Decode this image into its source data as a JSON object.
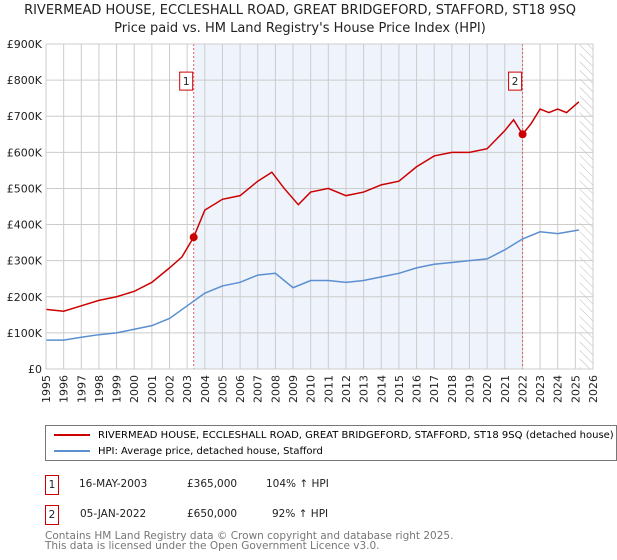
{
  "chart_data": {
    "type": "line",
    "title": "RIVERMEAD HOUSE, ECCLESHALL ROAD, GREAT BRIDGEFORD, STAFFORD, ST18 9SQ",
    "subtitle": "Price paid vs. HM Land Registry's House Price Index (HPI)",
    "xlim": [
      1995,
      2026
    ],
    "ylim": [
      0,
      900000
    ],
    "yticks": [
      {
        "v": 0,
        "label": "£0"
      },
      {
        "v": 100000,
        "label": "£100K"
      },
      {
        "v": 200000,
        "label": "£200K"
      },
      {
        "v": 300000,
        "label": "£300K"
      },
      {
        "v": 400000,
        "label": "£400K"
      },
      {
        "v": 500000,
        "label": "£500K"
      },
      {
        "v": 600000,
        "label": "£600K"
      },
      {
        "v": 700000,
        "label": "£700K"
      },
      {
        "v": 800000,
        "label": "£800K"
      },
      {
        "v": 900000,
        "label": "£900K"
      }
    ],
    "xticks": [
      "1995",
      "1996",
      "1997",
      "1998",
      "1999",
      "2000",
      "2001",
      "2002",
      "2003",
      "2004",
      "2005",
      "2006",
      "2007",
      "2008",
      "2009",
      "2010",
      "2011",
      "2012",
      "2013",
      "2014",
      "2015",
      "2016",
      "2017",
      "2018",
      "2019",
      "2020",
      "2021",
      "2022",
      "2023",
      "2024",
      "2025",
      "2026"
    ],
    "grid": true,
    "legend_placement": "below",
    "series": [
      {
        "name": "RIVERMEAD HOUSE, ECCLESHALL ROAD, GREAT BRIDGEFORD, STAFFORD, ST18 9SQ (detached house)",
        "color": "#cc0000",
        "x": [
          1995,
          1996,
          1997,
          1998,
          1999,
          2000,
          2001,
          2002,
          2002.7,
          2003.37,
          2004,
          2005,
          2006,
          2007,
          2007.8,
          2008.5,
          2009.3,
          2010,
          2011,
          2012,
          2013,
          2014,
          2015,
          2016,
          2017,
          2018,
          2019,
          2020,
          2021,
          2021.5,
          2022.01,
          2022.5,
          2023,
          2023.5,
          2024,
          2024.5,
          2025.2
        ],
        "y": [
          165000,
          160000,
          175000,
          190000,
          200000,
          215000,
          240000,
          280000,
          310000,
          365000,
          440000,
          470000,
          480000,
          520000,
          545000,
          500000,
          455000,
          490000,
          500000,
          480000,
          490000,
          510000,
          520000,
          560000,
          590000,
          600000,
          600000,
          610000,
          660000,
          690000,
          650000,
          680000,
          720000,
          710000,
          720000,
          710000,
          740000
        ]
      },
      {
        "name": "HPI: Average price, detached house, Stafford",
        "color": "#5b8fd0",
        "x": [
          1995,
          1996,
          1997,
          1998,
          1999,
          2000,
          2001,
          2002,
          2003,
          2004,
          2005,
          2006,
          2007,
          2008,
          2009,
          2010,
          2011,
          2012,
          2013,
          2014,
          2015,
          2016,
          2017,
          2018,
          2019,
          2020,
          2021,
          2022,
          2023,
          2024,
          2025.2
        ],
        "y": [
          80000,
          80000,
          88000,
          95000,
          100000,
          110000,
          120000,
          140000,
          175000,
          210000,
          230000,
          240000,
          260000,
          265000,
          225000,
          245000,
          245000,
          240000,
          245000,
          255000,
          265000,
          280000,
          290000,
          295000,
          300000,
          305000,
          330000,
          360000,
          380000,
          375000,
          385000
        ]
      }
    ],
    "annotations": [
      {
        "label": "1",
        "x": 2003.37,
        "y": 365000
      },
      {
        "label": "2",
        "x": 2022.01,
        "y": 650000
      }
    ],
    "shaded_range": [
      2003.37,
      2022.01
    ],
    "hatched_from": 2025.25
  },
  "sales": [
    {
      "num": "1",
      "date": "16-MAY-2003",
      "price": "£365,000",
      "hpi": "104% ↑ HPI"
    },
    {
      "num": "2",
      "date": "05-JAN-2022",
      "price": "£650,000",
      "hpi": "92% ↑ HPI"
    }
  ],
  "footer": {
    "line1": "Contains HM Land Registry data © Crown copyright and database right 2025.",
    "line2": "This data is licensed under the Open Government Licence v3.0."
  }
}
